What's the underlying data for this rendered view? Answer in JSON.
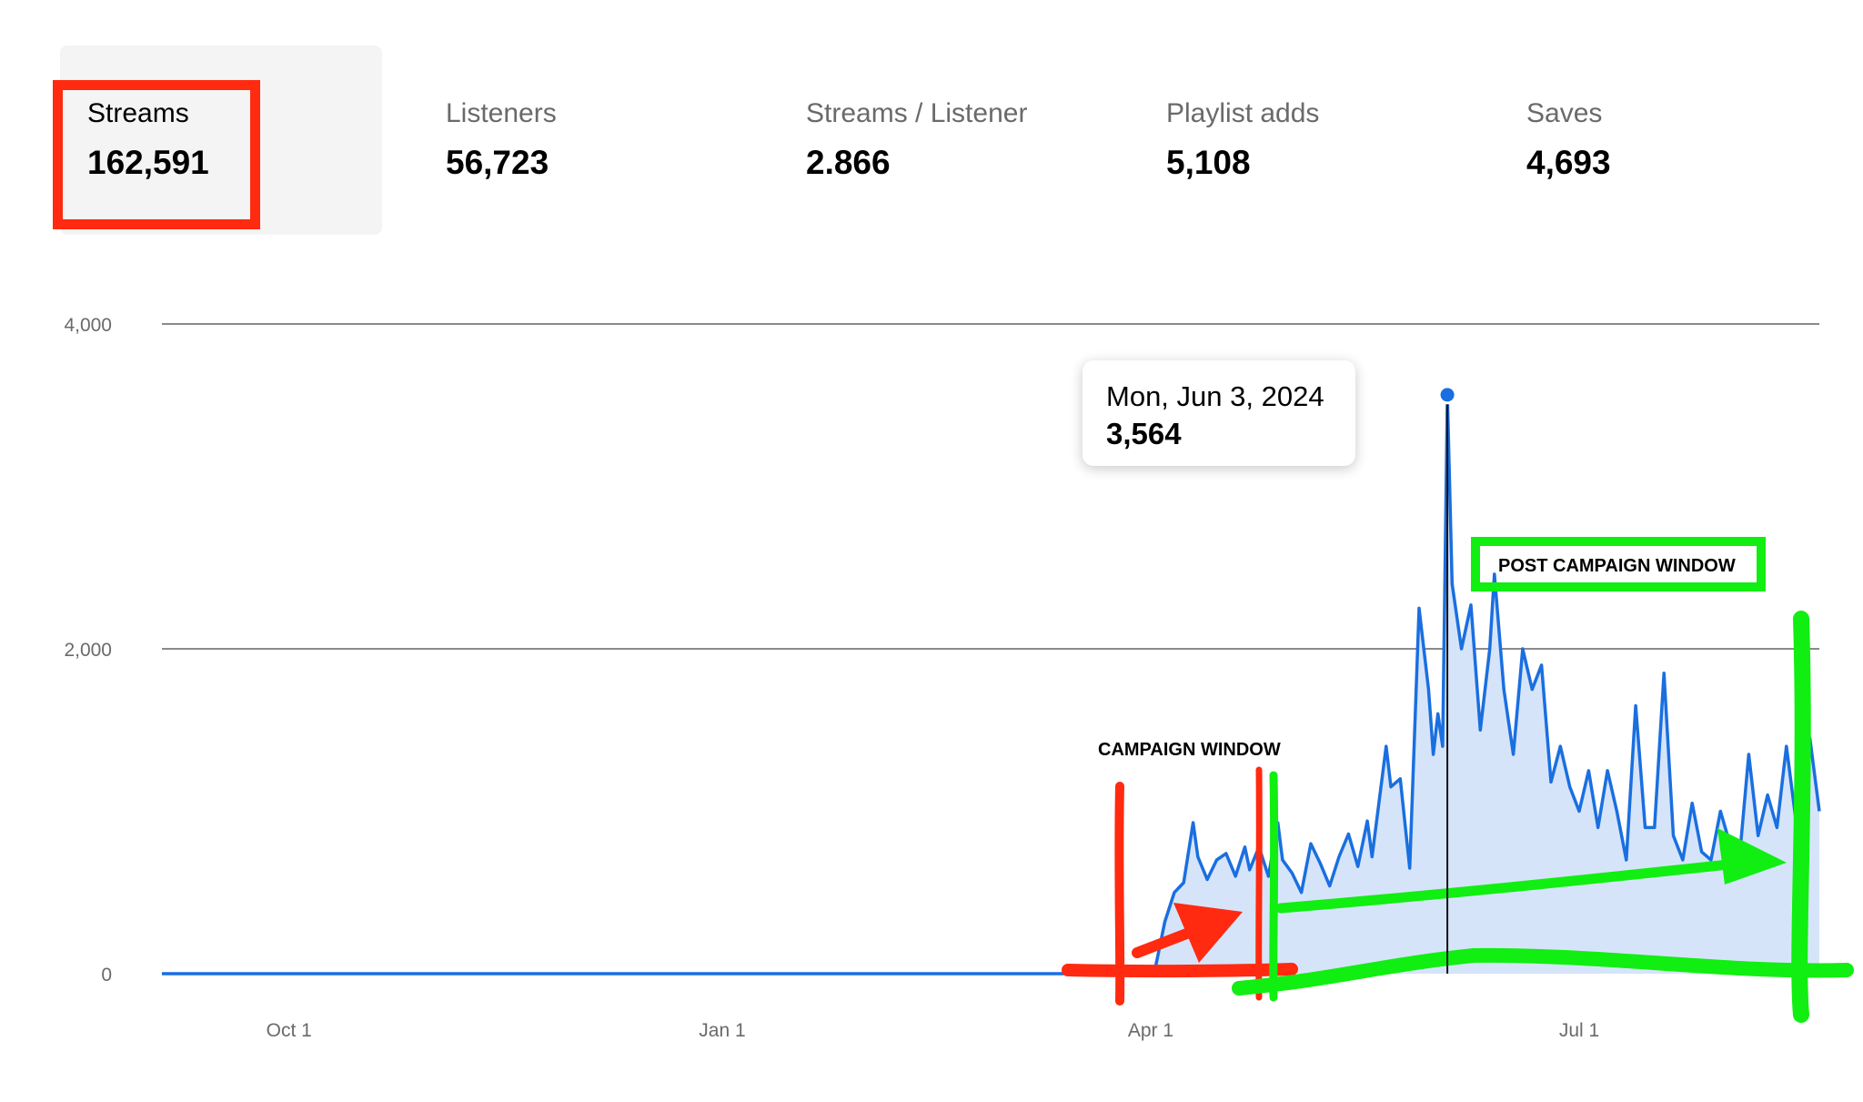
{
  "metrics": [
    {
      "label": "Streams",
      "value": "162,591",
      "selected": true
    },
    {
      "label": "Listeners",
      "value": "56,723"
    },
    {
      "label": "Streams / Listener",
      "value": "2.866"
    },
    {
      "label": "Playlist adds",
      "value": "5,108"
    },
    {
      "label": "Saves",
      "value": "4,693"
    }
  ],
  "tooltip": {
    "date": "Mon, Jun 3, 2024",
    "value": "3,564"
  },
  "annotations": {
    "campaign_window": "CAMPAIGN WINDOW",
    "post_campaign_window": "POST CAMPAIGN WINDOW"
  },
  "colors": {
    "line": "#1a6fe0",
    "area": "#d6e4fa",
    "campaign_marker": "#ff2a0f",
    "post_campaign_marker": "#11ee11"
  },
  "chart_data": {
    "type": "area",
    "title": "",
    "xlabel": "",
    "ylabel": "",
    "ylim": [
      0,
      4000
    ],
    "yticks": [
      0,
      2000,
      4000
    ],
    "ytick_labels": [
      "0",
      "2,000",
      "4,000"
    ],
    "xticks": [
      "2023-10-01",
      "2024-01-01",
      "2024-04-01",
      "2024-07-01"
    ],
    "xtick_labels": [
      "Oct 1",
      "Jan 1",
      "Apr 1",
      "Jul 1"
    ],
    "xlim": [
      "2023-09-04",
      "2024-08-21"
    ],
    "grid": true,
    "series": [
      {
        "values": [
          [
            "2023-09-04",
            0
          ],
          [
            "2024-03-31",
            0
          ],
          [
            "2024-04-02",
            40
          ],
          [
            "2024-04-04",
            320
          ],
          [
            "2024-04-06",
            500
          ],
          [
            "2024-04-08",
            560
          ],
          [
            "2024-04-10",
            930
          ],
          [
            "2024-04-11",
            720
          ],
          [
            "2024-04-13",
            580
          ],
          [
            "2024-04-15",
            700
          ],
          [
            "2024-04-17",
            740
          ],
          [
            "2024-04-19",
            600
          ],
          [
            "2024-04-21",
            780
          ],
          [
            "2024-04-22",
            640
          ],
          [
            "2024-04-24",
            780
          ],
          [
            "2024-04-26",
            600
          ],
          [
            "2024-04-28",
            930
          ],
          [
            "2024-04-29",
            700
          ],
          [
            "2024-05-01",
            620
          ],
          [
            "2024-05-03",
            500
          ],
          [
            "2024-05-05",
            800
          ],
          [
            "2024-05-07",
            680
          ],
          [
            "2024-05-09",
            540
          ],
          [
            "2024-05-11",
            720
          ],
          [
            "2024-05-13",
            860
          ],
          [
            "2024-05-15",
            660
          ],
          [
            "2024-05-17",
            940
          ],
          [
            "2024-05-18",
            720
          ],
          [
            "2024-05-21",
            1400
          ],
          [
            "2024-05-22",
            1150
          ],
          [
            "2024-05-24",
            1200
          ],
          [
            "2024-05-26",
            650
          ],
          [
            "2024-05-28",
            2250
          ],
          [
            "2024-05-30",
            1750
          ],
          [
            "2024-05-31",
            1350
          ],
          [
            "2024-06-01",
            1600
          ],
          [
            "2024-06-02",
            1400
          ],
          [
            "2024-06-03",
            3564
          ],
          [
            "2024-06-04",
            2400
          ],
          [
            "2024-06-06",
            2000
          ],
          [
            "2024-06-08",
            2270
          ],
          [
            "2024-06-10",
            1500
          ],
          [
            "2024-06-12",
            2000
          ],
          [
            "2024-06-13",
            2460
          ],
          [
            "2024-06-15",
            1750
          ],
          [
            "2024-06-17",
            1350
          ],
          [
            "2024-06-19",
            2000
          ],
          [
            "2024-06-21",
            1750
          ],
          [
            "2024-06-23",
            1900
          ],
          [
            "2024-06-25",
            1180
          ],
          [
            "2024-06-27",
            1400
          ],
          [
            "2024-06-29",
            1150
          ],
          [
            "2024-07-01",
            1000
          ],
          [
            "2024-07-03",
            1250
          ],
          [
            "2024-07-05",
            900
          ],
          [
            "2024-07-07",
            1250
          ],
          [
            "2024-07-09",
            1000
          ],
          [
            "2024-07-11",
            700
          ],
          [
            "2024-07-13",
            1650
          ],
          [
            "2024-07-15",
            900
          ],
          [
            "2024-07-17",
            900
          ],
          [
            "2024-07-19",
            1850
          ],
          [
            "2024-07-21",
            850
          ],
          [
            "2024-07-23",
            700
          ],
          [
            "2024-07-25",
            1050
          ],
          [
            "2024-07-27",
            750
          ],
          [
            "2024-07-29",
            700
          ],
          [
            "2024-07-31",
            1000
          ],
          [
            "2024-08-02",
            800
          ],
          [
            "2024-08-04",
            700
          ],
          [
            "2024-08-06",
            1350
          ],
          [
            "2024-08-08",
            850
          ],
          [
            "2024-08-10",
            1100
          ],
          [
            "2024-08-12",
            900
          ],
          [
            "2024-08-14",
            1400
          ],
          [
            "2024-08-16",
            950
          ],
          [
            "2024-08-17",
            1550
          ],
          [
            "2024-08-19",
            1450
          ],
          [
            "2024-08-21",
            1000
          ]
        ]
      }
    ],
    "highlight_point": [
      "2024-06-03",
      3564
    ]
  }
}
